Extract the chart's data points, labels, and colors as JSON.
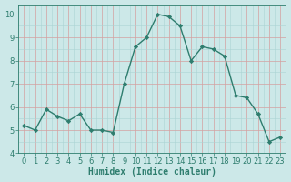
{
  "x": [
    0,
    1,
    2,
    3,
    4,
    5,
    6,
    7,
    8,
    9,
    10,
    11,
    12,
    13,
    14,
    15,
    16,
    17,
    18,
    19,
    20,
    21,
    22,
    23
  ],
  "y": [
    5.2,
    5.0,
    5.9,
    5.6,
    5.4,
    5.7,
    5.0,
    5.0,
    4.9,
    7.0,
    8.6,
    9.0,
    10.0,
    9.9,
    9.5,
    8.0,
    8.6,
    8.5,
    8.2,
    6.5,
    6.4,
    5.7,
    4.5,
    4.7
  ],
  "line_color": "#2e7d6e",
  "marker": "D",
  "marker_size": 2.2,
  "bg_color": "#cce8e8",
  "minor_grid_color": "#aad4d4",
  "major_grid_color": "#d4a0a0",
  "xlim": [
    -0.5,
    23.5
  ],
  "ylim": [
    4,
    10.4
  ],
  "yticks": [
    4,
    5,
    6,
    7,
    8,
    9,
    10
  ],
  "xticks": [
    0,
    1,
    2,
    3,
    4,
    5,
    6,
    7,
    8,
    9,
    10,
    11,
    12,
    13,
    14,
    15,
    16,
    17,
    18,
    19,
    20,
    21,
    22,
    23
  ],
  "xlabel": "Humidex (Indice chaleur)",
  "xlabel_fontsize": 7,
  "tick_fontsize": 6,
  "spine_color": "#2e7d6e",
  "linewidth": 1.0
}
